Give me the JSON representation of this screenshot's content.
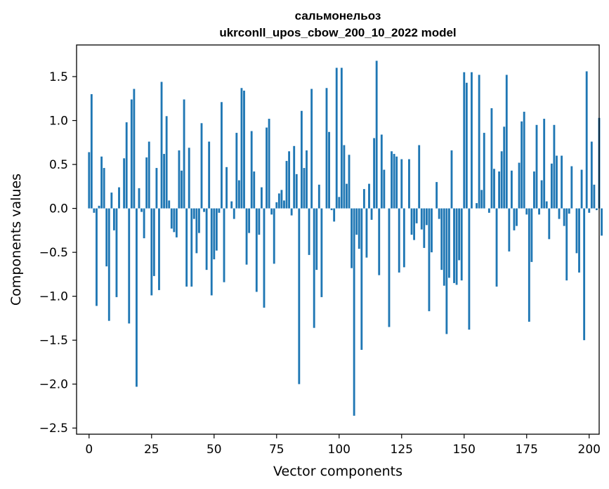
{
  "chart_data": {
    "type": "bar",
    "title_lines": [
      "сальмонельоз",
      "ukrconll_upos_cbow_200_10_2022 model"
    ],
    "xlabel": "Vector components",
    "ylabel": "Components values",
    "xlim": [
      -5,
      204
    ],
    "ylim": [
      -2.57,
      1.86
    ],
    "x_ticks": [
      0,
      25,
      50,
      75,
      100,
      125,
      150,
      175,
      200
    ],
    "x_tick_labels": [
      "0",
      "25",
      "50",
      "75",
      "100",
      "125",
      "150",
      "175",
      "200"
    ],
    "y_ticks": [
      -2.5,
      -2.0,
      -1.5,
      -1.0,
      -0.5,
      0.0,
      0.5,
      1.0,
      1.5
    ],
    "y_tick_labels": [
      "−2.5",
      "−2.0",
      "−1.5",
      "−1.0",
      "−0.5",
      "0.0",
      "0.5",
      "1.0",
      "1.5"
    ],
    "bar_color": "#1f77b4",
    "grid": false,
    "values": [
      0.64,
      1.3,
      -0.05,
      -1.11,
      0.03,
      0.59,
      0.46,
      -0.66,
      -1.28,
      0.18,
      -0.25,
      -1.01,
      0.24,
      0.0,
      0.57,
      0.98,
      -1.31,
      1.24,
      1.36,
      -2.03,
      0.23,
      -0.04,
      -0.34,
      0.58,
      0.76,
      -0.99,
      -0.77,
      0.46,
      -0.93,
      1.44,
      0.62,
      1.05,
      0.09,
      -0.23,
      -0.27,
      -0.33,
      0.66,
      0.43,
      1.24,
      -0.89,
      0.69,
      -0.89,
      -0.12,
      -0.51,
      -0.28,
      0.97,
      -0.04,
      -0.7,
      0.76,
      -0.99,
      -0.58,
      -0.48,
      -0.05,
      1.21,
      -0.84,
      0.47,
      0.0,
      0.08,
      -0.12,
      0.86,
      0.32,
      1.37,
      1.34,
      -0.64,
      -0.28,
      0.88,
      0.42,
      -0.95,
      -0.3,
      0.24,
      -1.13,
      0.92,
      1.02,
      -0.07,
      -0.63,
      0.07,
      0.17,
      0.21,
      0.09,
      0.54,
      0.65,
      -0.08,
      0.71,
      0.39,
      -2.0,
      1.11,
      0.46,
      0.66,
      -0.53,
      1.36,
      -1.36,
      -0.7,
      0.27,
      -1.01,
      0.0,
      1.37,
      0.87,
      -0.02,
      -0.15,
      1.6,
      0.13,
      1.6,
      0.72,
      0.28,
      0.61,
      -0.68,
      -2.36,
      -0.3,
      -0.46,
      -1.61,
      0.22,
      -0.56,
      0.28,
      -0.13,
      0.8,
      1.68,
      -0.76,
      0.84,
      0.44,
      0.0,
      -1.35,
      0.65,
      0.62,
      0.59,
      -0.73,
      0.56,
      -0.67,
      0.0,
      0.56,
      -0.3,
      -0.36,
      -0.17,
      0.72,
      -0.24,
      -0.45,
      -0.19,
      -1.17,
      -0.5,
      0.0,
      0.3,
      -0.12,
      -0.7,
      -0.88,
      -1.43,
      -0.79,
      0.66,
      -0.85,
      -0.87,
      -0.59,
      -0.82,
      1.55,
      1.43,
      -1.38,
      1.55,
      0.0,
      0.06,
      1.52,
      0.21,
      0.86,
      0.0,
      -0.05,
      1.14,
      0.45,
      -0.89,
      0.42,
      0.65,
      0.93,
      1.52,
      -0.49,
      0.43,
      -0.25,
      -0.2,
      0.52,
      0.99,
      1.1,
      -0.07,
      -1.29,
      -0.61,
      0.42,
      0.95,
      -0.07,
      0.32,
      1.02,
      0.08,
      -0.35,
      0.51,
      0.95,
      0.6,
      -0.12,
      0.6,
      -0.2,
      -0.82,
      -0.06,
      0.48,
      0.0,
      -0.51,
      -0.73,
      0.44,
      -1.5,
      1.56,
      -0.05,
      0.76,
      0.27,
      -0.02,
      1.03,
      -0.31
    ]
  }
}
